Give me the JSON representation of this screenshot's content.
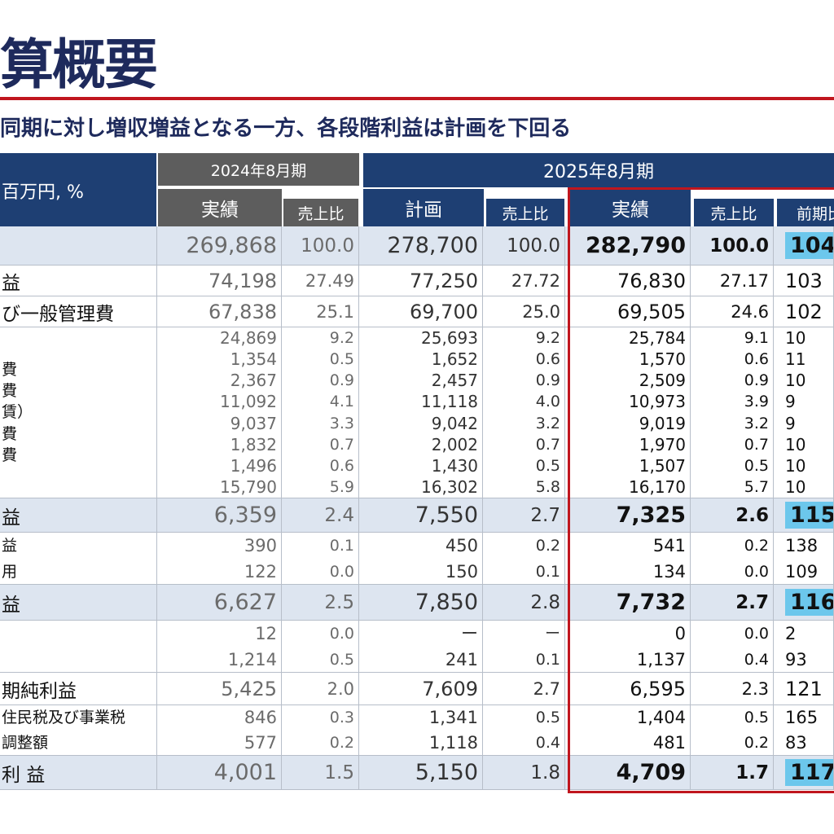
{
  "title": "算概要",
  "subtitle": "同期に対し増収増益となる一方、各段階利益は計画を下回る",
  "header": {
    "unit": "百万円, %",
    "fy2024": "2024年8月期",
    "fy2025": "2025年8月期",
    "actual": "実績",
    "ratio": "売上比",
    "plan": "計画",
    "actual2": "実績",
    "ratio2": "売上比",
    "yoy": "前期比"
  },
  "rows": [
    {
      "label": "",
      "prev": "269,868",
      "prev_r": "100.0",
      "plan": "278,700",
      "plan_r": "100.0",
      "act": "282,790",
      "act_r": "100.0",
      "yoy": "104"
    },
    {
      "label": "益",
      "prev": "74,198",
      "prev_r": "27.49",
      "plan": "77,250",
      "plan_r": "27.72",
      "act": "76,830",
      "act_r": "27.17",
      "yoy": "103"
    },
    {
      "label": "び一般管理費",
      "prev": "67,838",
      "prev_r": "25.1",
      "plan": "69,700",
      "plan_r": "25.0",
      "act": "69,505",
      "act_r": "24.6",
      "yoy": "102"
    },
    {
      "labels": [
        "",
        "費",
        "費",
        "賃）",
        "",
        "費",
        "費",
        ""
      ],
      "prev": [
        "24,869",
        "1,354",
        "2,367",
        "11,092",
        "9,037",
        "1,832",
        "1,496",
        "15,790"
      ],
      "prev_r": [
        "9.2",
        "0.5",
        "0.9",
        "4.1",
        "3.3",
        "0.7",
        "0.6",
        "5.9"
      ],
      "plan": [
        "25,693",
        "1,652",
        "2,457",
        "11,118",
        "9,042",
        "2,002",
        "1,430",
        "16,302"
      ],
      "plan_r": [
        "9.2",
        "0.6",
        "0.9",
        "4.0",
        "3.2",
        "0.7",
        "0.5",
        "5.8"
      ],
      "act": [
        "25,784",
        "1,570",
        "2,509",
        "10,973",
        "9,019",
        "1,970",
        "1,507",
        "16,170"
      ],
      "act_r": [
        "9.1",
        "0.6",
        "0.9",
        "3.9",
        "3.2",
        "0.7",
        "0.5",
        "5.7"
      ],
      "yoy": [
        "10",
        "11",
        "10",
        "9",
        "9",
        "10",
        "10",
        "10"
      ]
    },
    {
      "label": "益",
      "prev": "6,359",
      "prev_r": "2.4",
      "plan": "7,550",
      "plan_r": "2.7",
      "act": "7,325",
      "act_r": "2.6",
      "yoy": "115"
    },
    {
      "labels": [
        "益",
        "用"
      ],
      "prev": [
        "390",
        "122"
      ],
      "prev_r": [
        "0.1",
        "0.0"
      ],
      "plan": [
        "450",
        "150"
      ],
      "plan_r": [
        "0.2",
        "0.1"
      ],
      "act": [
        "541",
        "134"
      ],
      "act_r": [
        "0.2",
        "0.0"
      ],
      "yoy": [
        "138",
        "109"
      ]
    },
    {
      "label": "益",
      "prev": "6,627",
      "prev_r": "2.5",
      "plan": "7,850",
      "plan_r": "2.8",
      "act": "7,732",
      "act_r": "2.7",
      "yoy": "116"
    },
    {
      "labels": [
        "",
        ""
      ],
      "prev": [
        "12",
        "1,214"
      ],
      "prev_r": [
        "0.0",
        "0.5"
      ],
      "plan": [
        "ー",
        "241"
      ],
      "plan_r": [
        "ー",
        "0.1"
      ],
      "act": [
        "0",
        "1,137"
      ],
      "act_r": [
        "0.0",
        "0.4"
      ],
      "yoy": [
        "2",
        "93"
      ]
    },
    {
      "label": "期純利益",
      "prev": "5,425",
      "prev_r": "2.0",
      "plan": "7,609",
      "plan_r": "2.7",
      "act": "6,595",
      "act_r": "2.3",
      "yoy": "121"
    },
    {
      "labels": [
        "住民税及び事業税",
        "調整額"
      ],
      "prev": [
        "846",
        "577"
      ],
      "prev_r": [
        "0.3",
        "0.2"
      ],
      "plan": [
        "1,341",
        "1,118"
      ],
      "plan_r": [
        "0.5",
        "0.4"
      ],
      "act": [
        "1,404",
        "481"
      ],
      "act_r": [
        "0.5",
        "0.2"
      ],
      "yoy": [
        "165",
        "83"
      ]
    },
    {
      "label": "利 益",
      "prev": "4,001",
      "prev_r": "1.5",
      "plan": "5,150",
      "plan_r": "1.8",
      "act": "4,709",
      "act_r": "1.7",
      "yoy": "117"
    }
  ],
  "colors": {
    "navy": "#1e3f73",
    "gray_header": "#5d5d5d",
    "highlight_row": "#dde5f0",
    "accent_red": "#c0161e",
    "yoy_highlight": "#6cc7ec"
  }
}
